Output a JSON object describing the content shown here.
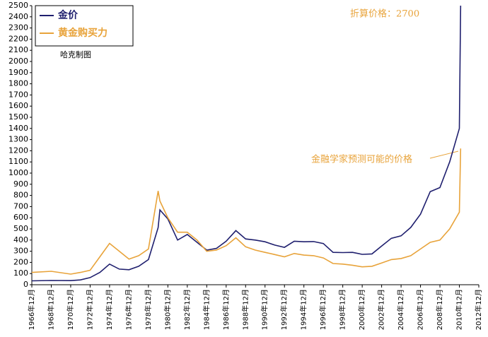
{
  "chart_data": {
    "type": "line",
    "legend_title_note": "哈克制图",
    "annotations": [
      "折算价格：2700",
      "金融学家预测可能的价格"
    ],
    "x": [
      1966.92,
      1968.92,
      1970.92,
      1971.92,
      1972.92,
      1973.92,
      1974.92,
      1975.92,
      1976.92,
      1977.92,
      1978.92,
      1979.92,
      1980.1,
      1980.92,
      1981.92,
      1982.92,
      1983.92,
      1984.92,
      1985.92,
      1986.92,
      1987.92,
      1988.92,
      1989.92,
      1990.92,
      1991.92,
      1992.92,
      1993.92,
      1994.92,
      1995.92,
      1996.92,
      1997.92,
      1998.92,
      1999.92,
      2000.92,
      2001.92,
      2002.92,
      2003.92,
      2004.92,
      2005.92,
      2006.92,
      2007.92,
      2008.92,
      2009.92,
      2010.92,
      2011.05
    ],
    "series": [
      {
        "name": "金价",
        "color": "#1f1f6e",
        "values": [
          35,
          38,
          37,
          43,
          64,
          110,
          185,
          140,
          134,
          165,
          225,
          512,
          670,
          590,
          400,
          450,
          380,
          310,
          325,
          390,
          485,
          410,
          400,
          385,
          355,
          335,
          390,
          385,
          387,
          369,
          290,
          288,
          290,
          272,
          276,
          347,
          416,
          438,
          513,
          632,
          834,
          870,
          1100,
          1400,
          2500
        ]
      },
      {
        "name": "黄金购买力",
        "color": "#e8a33a",
        "values": [
          110,
          120,
          95,
          110,
          130,
          250,
          370,
          300,
          230,
          260,
          320,
          840,
          750,
          600,
          470,
          470,
          400,
          300,
          310,
          350,
          420,
          340,
          310,
          290,
          270,
          250,
          280,
          265,
          260,
          240,
          190,
          185,
          175,
          160,
          165,
          195,
          225,
          235,
          260,
          320,
          380,
          400,
          500,
          650,
          1220
        ]
      }
    ],
    "xlim": [
      1966.92,
      2012.92
    ],
    "xticks": [
      {
        "value": 1966.92,
        "label": "1966年12月"
      },
      {
        "value": 1968.92,
        "label": "1968年12月"
      },
      {
        "value": 1970.92,
        "label": "1970年12月"
      },
      {
        "value": 1972.92,
        "label": "1972年12月"
      },
      {
        "value": 1974.92,
        "label": "1974年12月"
      },
      {
        "value": 1976.92,
        "label": "1976年12月"
      },
      {
        "value": 1978.92,
        "label": "1978年12月"
      },
      {
        "value": 1980.92,
        "label": "1980年12月"
      },
      {
        "value": 1982.92,
        "label": "1982年12月"
      },
      {
        "value": 1984.92,
        "label": "1984年12月"
      },
      {
        "value": 1986.92,
        "label": "1986年12月"
      },
      {
        "value": 1988.92,
        "label": "1988年12月"
      },
      {
        "value": 1990.92,
        "label": "1990年12月"
      },
      {
        "value": 1992.92,
        "label": "1992年12月"
      },
      {
        "value": 1994.92,
        "label": "1994年12月"
      },
      {
        "value": 1996.92,
        "label": "1996年12月"
      },
      {
        "value": 1998.92,
        "label": "1998年12月"
      },
      {
        "value": 2000.92,
        "label": "2000年12月"
      },
      {
        "value": 2002.92,
        "label": "2002年12月"
      },
      {
        "value": 2004.92,
        "label": "2004年12月"
      },
      {
        "value": 2006.92,
        "label": "2006年12月"
      },
      {
        "value": 2008.92,
        "label": "2008年12月"
      },
      {
        "value": 2010.92,
        "label": "2010年12月"
      },
      {
        "value": 2012.92,
        "label": "2012年12月"
      }
    ],
    "ylim": [
      0,
      2500
    ],
    "yticks": [
      0,
      100,
      200,
      300,
      400,
      500,
      600,
      700,
      800,
      900,
      1000,
      1100,
      1200,
      1300,
      1400,
      1500,
      1600,
      1700,
      1800,
      1900,
      2000,
      2100,
      2200,
      2300,
      2400,
      2500
    ],
    "grid": false
  }
}
